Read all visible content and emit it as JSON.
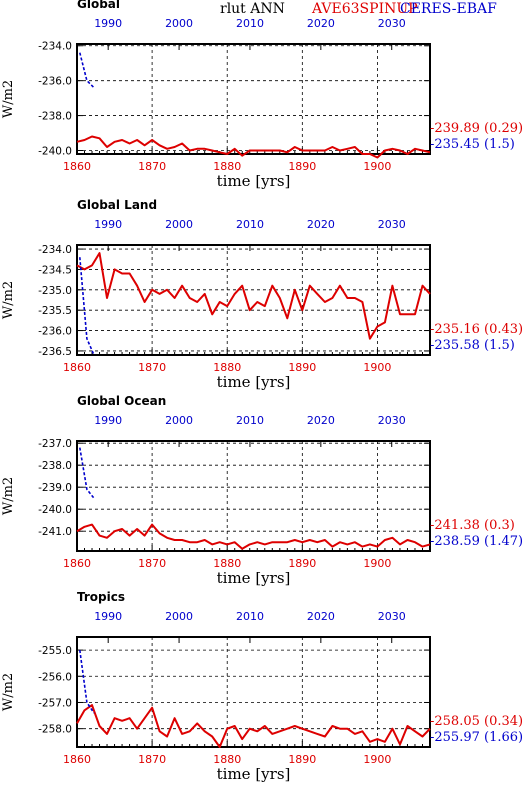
{
  "header": {
    "variable": "rlut ANN",
    "model_label": "AVE63SPINUP",
    "obs_label": "CERES-EBAF"
  },
  "colors": {
    "model": "#dd0000",
    "obs": "#0000cc",
    "axis": "#000000",
    "grid": "#000000"
  },
  "chart_data": [
    {
      "type": "line",
      "title": "Global",
      "ylabel": "W/m2",
      "xlabel": "time [yrs]",
      "bottom_axis": {
        "label": "time [yrs]",
        "range": [
          1860,
          1907
        ],
        "ticks": [
          1860,
          1870,
          1880,
          1890,
          1900
        ]
      },
      "top_axis": {
        "range": [
          1985.6,
          2035.4
        ],
        "ticks": [
          1990,
          2000,
          2010,
          2020,
          2030
        ]
      },
      "yaxis": {
        "range": [
          -240.2,
          -233.9
        ],
        "ticks": [
          -234.0,
          -236.0,
          -238.0,
          -240.0
        ],
        "tick_labels": [
          "-234.0",
          "-236.0",
          "-238.0",
          "-240.0"
        ]
      },
      "series": [
        {
          "name": "AVE63SPINUP",
          "axis": "bottom",
          "x": [
            1860,
            1861,
            1862,
            1863,
            1864,
            1865,
            1866,
            1867,
            1868,
            1869,
            1870,
            1871,
            1872,
            1873,
            1874,
            1875,
            1876,
            1877,
            1878,
            1879,
            1880,
            1881,
            1882,
            1883,
            1884,
            1885,
            1886,
            1887,
            1888,
            1889,
            1890,
            1891,
            1892,
            1893,
            1894,
            1895,
            1896,
            1897,
            1898,
            1899,
            1900,
            1901,
            1902,
            1903,
            1904,
            1905,
            1906,
            1907
          ],
          "y": [
            -239.5,
            -239.4,
            -239.2,
            -239.3,
            -239.8,
            -239.5,
            -239.4,
            -239.6,
            -239.4,
            -239.7,
            -239.4,
            -239.7,
            -239.9,
            -239.8,
            -239.6,
            -240.0,
            -239.9,
            -239.9,
            -240.0,
            -240.1,
            -240.2,
            -239.9,
            -240.3,
            -240.0,
            -240.0,
            -240.0,
            -240.0,
            -240.0,
            -240.1,
            -239.8,
            -240.0,
            -240.0,
            -240.0,
            -240.0,
            -239.8,
            -240.0,
            -239.9,
            -239.8,
            -240.2,
            -240.2,
            -240.4,
            -240.0,
            -239.9,
            -240.0,
            -240.2,
            -239.9,
            -240.0,
            -240.1
          ],
          "summary": "-239.89 (0.29)"
        },
        {
          "name": "CERES-EBAF",
          "axis": "top",
          "x": [
            1986,
            1987,
            1988
          ],
          "y": [
            -234.4,
            -236.0,
            -236.4
          ],
          "summary": "-235.45 (1.5)"
        }
      ]
    },
    {
      "type": "line",
      "title": "Global Land",
      "ylabel": "W/m2",
      "xlabel": "time [yrs]",
      "bottom_axis": {
        "label": "time [yrs]",
        "range": [
          1860,
          1907
        ],
        "ticks": [
          1860,
          1870,
          1880,
          1890,
          1900
        ]
      },
      "top_axis": {
        "range": [
          1985.6,
          2035.4
        ],
        "ticks": [
          1990,
          2000,
          2010,
          2020,
          2030
        ]
      },
      "yaxis": {
        "range": [
          -236.6,
          -233.9
        ],
        "ticks": [
          -234.0,
          -234.5,
          -235.0,
          -235.5,
          -236.0,
          -236.5
        ],
        "tick_labels": [
          "-234.0",
          "-234.5",
          "-235.0",
          "-235.5",
          "-236.0",
          "-236.5"
        ]
      },
      "series": [
        {
          "name": "AVE63SPINUP",
          "axis": "bottom",
          "x": [
            1860,
            1861,
            1862,
            1863,
            1864,
            1865,
            1866,
            1867,
            1868,
            1869,
            1870,
            1871,
            1872,
            1873,
            1874,
            1875,
            1876,
            1877,
            1878,
            1879,
            1880,
            1881,
            1882,
            1883,
            1884,
            1885,
            1886,
            1887,
            1888,
            1889,
            1890,
            1891,
            1892,
            1893,
            1894,
            1895,
            1896,
            1897,
            1898,
            1899,
            1900,
            1901,
            1902,
            1903,
            1904,
            1905,
            1906,
            1907
          ],
          "y": [
            -234.4,
            -234.5,
            -234.4,
            -234.1,
            -235.2,
            -234.5,
            -234.6,
            -234.6,
            -234.9,
            -235.3,
            -235.0,
            -235.1,
            -235.0,
            -235.2,
            -234.9,
            -235.2,
            -235.3,
            -235.1,
            -235.6,
            -235.3,
            -235.4,
            -235.1,
            -234.9,
            -235.5,
            -235.3,
            -235.4,
            -234.9,
            -235.2,
            -235.7,
            -235.0,
            -235.5,
            -234.9,
            -235.1,
            -235.3,
            -235.2,
            -234.9,
            -235.2,
            -235.2,
            -235.3,
            -236.2,
            -235.9,
            -235.8,
            -234.9,
            -235.6,
            -235.6,
            -235.6,
            -234.9,
            -235.1
          ],
          "summary": "-235.16 (0.43)"
        },
        {
          "name": "CERES-EBAF",
          "axis": "top",
          "x": [
            1986,
            1987,
            1988
          ],
          "y": [
            -234.2,
            -236.2,
            -236.6
          ],
          "summary": "-235.58 (1.5)"
        }
      ]
    },
    {
      "type": "line",
      "title": "Global Ocean",
      "ylabel": "W/m2",
      "xlabel": "time [yrs]",
      "bottom_axis": {
        "label": "time [yrs]",
        "range": [
          1860,
          1907
        ],
        "ticks": [
          1860,
          1870,
          1880,
          1890,
          1900
        ]
      },
      "top_axis": {
        "range": [
          1985.6,
          2035.4
        ],
        "ticks": [
          1990,
          2000,
          2010,
          2020,
          2030
        ]
      },
      "yaxis": {
        "range": [
          -241.9,
          -236.9
        ],
        "ticks": [
          -237.0,
          -238.0,
          -239.0,
          -240.0,
          -241.0
        ],
        "tick_labels": [
          "-237.0",
          "-238.0",
          "-239.0",
          "-240.0",
          "-241.0"
        ]
      },
      "series": [
        {
          "name": "AVE63SPINUP",
          "axis": "bottom",
          "x": [
            1860,
            1861,
            1862,
            1863,
            1864,
            1865,
            1866,
            1867,
            1868,
            1869,
            1870,
            1871,
            1872,
            1873,
            1874,
            1875,
            1876,
            1877,
            1878,
            1879,
            1880,
            1881,
            1882,
            1883,
            1884,
            1885,
            1886,
            1887,
            1888,
            1889,
            1890,
            1891,
            1892,
            1893,
            1894,
            1895,
            1896,
            1897,
            1898,
            1899,
            1900,
            1901,
            1902,
            1903,
            1904,
            1905,
            1906,
            1907
          ],
          "y": [
            -241.0,
            -240.8,
            -240.7,
            -241.2,
            -241.3,
            -241.0,
            -240.9,
            -241.2,
            -240.9,
            -241.2,
            -240.7,
            -241.1,
            -241.3,
            -241.4,
            -241.4,
            -241.5,
            -241.5,
            -241.4,
            -241.6,
            -241.5,
            -241.6,
            -241.5,
            -241.8,
            -241.6,
            -241.5,
            -241.6,
            -241.5,
            -241.5,
            -241.5,
            -241.4,
            -241.5,
            -241.4,
            -241.5,
            -241.4,
            -241.7,
            -241.5,
            -241.6,
            -241.5,
            -241.7,
            -241.6,
            -241.7,
            -241.4,
            -241.3,
            -241.6,
            -241.4,
            -241.5,
            -241.7,
            -241.6
          ],
          "summary": "-241.38 (0.3)"
        },
        {
          "name": "CERES-EBAF",
          "axis": "top",
          "x": [
            1986,
            1987,
            1988
          ],
          "y": [
            -237.2,
            -239.1,
            -239.5
          ],
          "summary": "-238.59 (1.47)"
        }
      ]
    },
    {
      "type": "line",
      "title": "Tropics",
      "ylabel": "W/m2",
      "xlabel": "time [yrs]",
      "bottom_axis": {
        "label": "time [yrs]",
        "range": [
          1860,
          1907
        ],
        "ticks": [
          1860,
          1870,
          1880,
          1890,
          1900
        ]
      },
      "top_axis": {
        "range": [
          1985.6,
          2035.4
        ],
        "ticks": [
          1990,
          2000,
          2010,
          2020,
          2030
        ]
      },
      "yaxis": {
        "range": [
          -258.7,
          -254.5
        ],
        "ticks": [
          -255.0,
          -256.0,
          -257.0,
          -258.0
        ],
        "tick_labels": [
          "-255.0",
          "-256.0",
          "-257.0",
          "-258.0"
        ]
      },
      "series": [
        {
          "name": "AVE63SPINUP",
          "axis": "bottom",
          "x": [
            1860,
            1861,
            1862,
            1863,
            1864,
            1865,
            1866,
            1867,
            1868,
            1869,
            1870,
            1871,
            1872,
            1873,
            1874,
            1875,
            1876,
            1877,
            1878,
            1879,
            1880,
            1881,
            1882,
            1883,
            1884,
            1885,
            1886,
            1887,
            1888,
            1889,
            1890,
            1891,
            1892,
            1893,
            1894,
            1895,
            1896,
            1897,
            1898,
            1899,
            1900,
            1901,
            1902,
            1903,
            1904,
            1905,
            1906,
            1907
          ],
          "y": [
            -257.8,
            -257.3,
            -257.1,
            -257.9,
            -258.2,
            -257.6,
            -257.7,
            -257.6,
            -258.0,
            -257.6,
            -257.2,
            -258.1,
            -258.3,
            -257.6,
            -258.2,
            -258.1,
            -257.8,
            -258.1,
            -258.3,
            -258.7,
            -258.0,
            -257.9,
            -258.4,
            -258.0,
            -258.1,
            -257.9,
            -258.2,
            -258.1,
            -258.0,
            -257.9,
            -258.0,
            -258.1,
            -258.2,
            -258.3,
            -257.9,
            -258.0,
            -258.0,
            -258.2,
            -258.1,
            -258.5,
            -258.4,
            -258.5,
            -258.0,
            -258.6,
            -257.9,
            -258.1,
            -258.3,
            -258.0
          ],
          "summary": "-258.05 (0.34)"
        },
        {
          "name": "CERES-EBAF",
          "axis": "top",
          "x": [
            1986,
            1987,
            1988
          ],
          "y": [
            -255.0,
            -257.0,
            -257.4
          ],
          "summary": "-255.97 (1.66)"
        }
      ]
    }
  ]
}
